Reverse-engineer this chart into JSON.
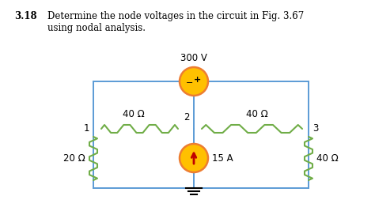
{
  "title_bold": "3.18",
  "title_text": "Determine the node voltages in the circuit in Fig. 3.67\nusing nodal analysis.",
  "bg_color": "#ffffff",
  "wire_color": "#5b9bd5",
  "resistor_color": "#70ad47",
  "source_fill": "#ffc000",
  "source_stroke": "#ed7d31",
  "current_arrow_color": "#c00000",
  "node1_label": "1",
  "node2_label": "2",
  "node3_label": "3",
  "r1_label": "40 Ω",
  "r2_label": "40 Ω",
  "r3_label": "20 Ω",
  "r4_label": "40 Ω",
  "v_label": "300 V",
  "i_label": "15 A",
  "text_color": "#404040"
}
